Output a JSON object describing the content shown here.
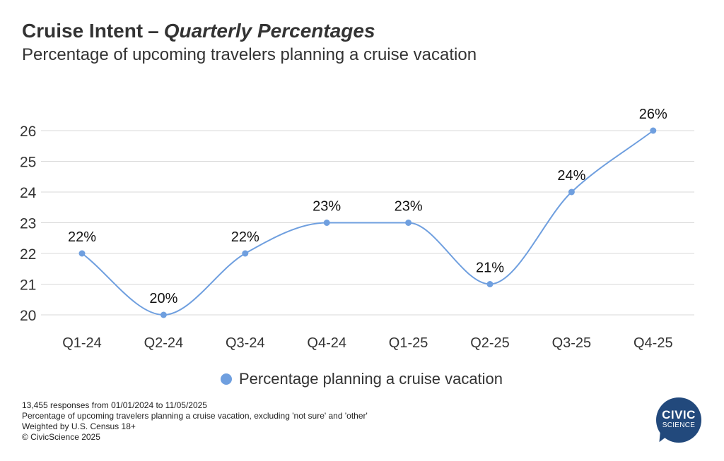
{
  "header": {
    "title_main": "Cruise Intent",
    "title_dash": "–",
    "title_italic": "Quarterly Percentages",
    "subtitle": "Percentage of upcoming travelers planning a cruise vacation"
  },
  "chart_data": {
    "type": "line",
    "title": "Cruise Intent – Quarterly Percentages",
    "subtitle": "Percentage of upcoming travelers planning a cruise vacation",
    "xlabel": "",
    "ylabel": "",
    "categories": [
      "Q1-24",
      "Q2-24",
      "Q3-24",
      "Q4-24",
      "Q1-25",
      "Q2-25",
      "Q3-25",
      "Q4-25"
    ],
    "series": [
      {
        "name": "Percentage planning a cruise vacation",
        "values": [
          22,
          20,
          22,
          23,
          23,
          21,
          24,
          26
        ],
        "labels": [
          "22%",
          "20%",
          "22%",
          "23%",
          "23%",
          "21%",
          "24%",
          "26%"
        ]
      }
    ],
    "yticks": [
      20,
      21,
      22,
      23,
      24,
      25,
      26
    ],
    "ylim": [
      20,
      26
    ],
    "grid": true,
    "legend_position": "bottom-center",
    "line_color": "#6f9fdf",
    "grid_color": "#d9d9d9"
  },
  "legend": {
    "label": "Percentage planning a cruise vacation",
    "color": "#6f9fdf"
  },
  "footnotes": [
    "13,455 responses from 01/01/2024 to 11/05/2025",
    "Percentage of upcoming travelers planning a cruise vacation, excluding 'not sure' and 'other'",
    "Weighted by U.S. Census 18+",
    "© CivicScience 2025"
  ],
  "logo": {
    "line1": "CIVIC",
    "line2": "SCIENCE",
    "color": "#22497c"
  }
}
